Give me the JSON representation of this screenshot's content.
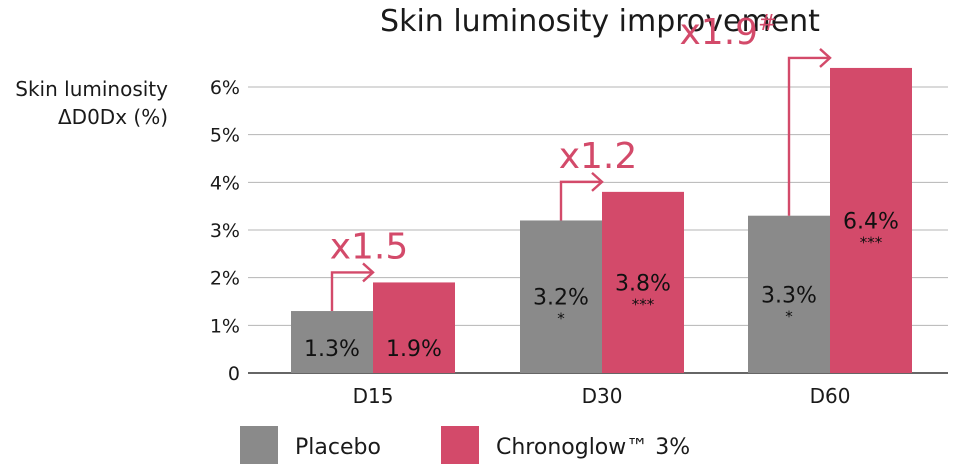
{
  "chart_data": {
    "type": "bar",
    "title": "Skin luminosity improvement",
    "ylabel_lines": [
      "Skin luminosity",
      "ΔD0Dx (%)"
    ],
    "xlabel": "",
    "ylim": [
      0,
      6
    ],
    "yticks": [
      {
        "value": 0,
        "label": "0"
      },
      {
        "value": 1,
        "label": "1%"
      },
      {
        "value": 2,
        "label": "2%"
      },
      {
        "value": 3,
        "label": "3%"
      },
      {
        "value": 4,
        "label": "4%"
      },
      {
        "value": 5,
        "label": "5%"
      },
      {
        "value": 6,
        "label": "6%"
      }
    ],
    "grid": true,
    "legend_position": "bottom",
    "categories": [
      "D15",
      "D30",
      "D60"
    ],
    "series": [
      {
        "name": "Placebo",
        "color": "#8a8a8a",
        "values": [
          1.3,
          3.2,
          3.3
        ],
        "labels": [
          "1.3%",
          "3.2%",
          "3.3%"
        ],
        "significance": [
          "",
          "*",
          "*"
        ]
      },
      {
        "name": "Chronoglow™ 3%",
        "color": "#d34a6a",
        "values": [
          1.9,
          3.8,
          6.4
        ],
        "labels": [
          "1.9%",
          "3.8%",
          "6.4%"
        ],
        "significance": [
          "",
          "***",
          "***"
        ]
      }
    ],
    "ratio_annotations": [
      {
        "category": "D15",
        "text": "x1.5",
        "sup": ""
      },
      {
        "category": "D30",
        "text": "x1.2",
        "sup": ""
      },
      {
        "category": "D60",
        "text": "x1.9",
        "sup": "#"
      }
    ],
    "accent_color": "#d34a6a",
    "grid_color": "#b5b5b5"
  }
}
